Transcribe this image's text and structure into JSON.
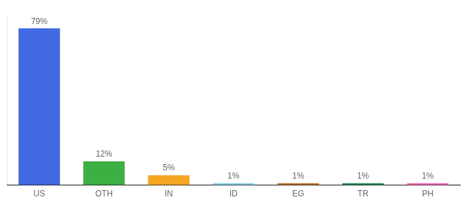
{
  "chart_data": {
    "type": "bar",
    "categories": [
      "US",
      "OTH",
      "IN",
      "ID",
      "EG",
      "TR",
      "PH"
    ],
    "values": [
      79,
      12,
      5,
      1,
      1,
      1,
      1
    ],
    "value_labels": [
      "79%",
      "12%",
      "5%",
      "1%",
      "1%",
      "1%",
      "1%"
    ],
    "colors": [
      "#4169e1",
      "#3cb043",
      "#f5a623",
      "#87ceeb",
      "#b87333",
      "#2e8b57",
      "#ff69b4"
    ],
    "ylim": [
      0,
      85
    ],
    "grid": false,
    "data_labels": true,
    "tick_labels": "x"
  }
}
